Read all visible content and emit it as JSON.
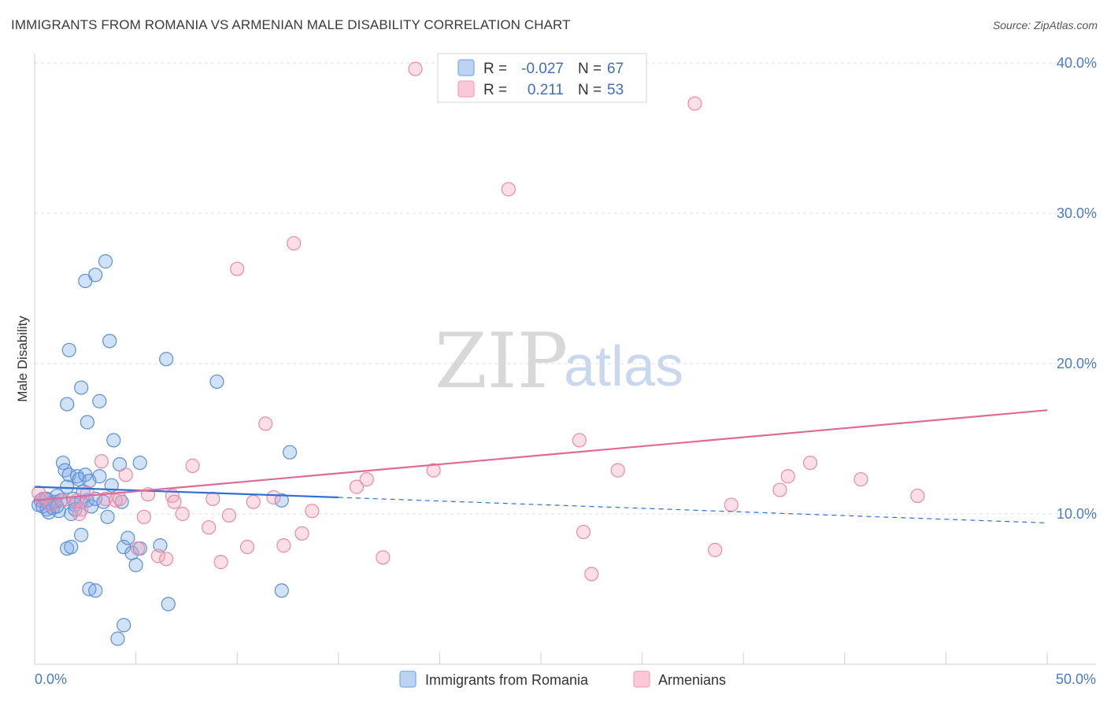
{
  "header": {
    "title": "IMMIGRANTS FROM ROMANIA VS ARMENIAN MALE DISABILITY CORRELATION CHART",
    "source": "Source: ZipAtlas.com"
  },
  "watermark": {
    "zip": "ZIP",
    "atlas": "atlas"
  },
  "colors": {
    "blue": "#7aaae6",
    "blue_line": "#2e6fd0",
    "pink": "#f2a2bb",
    "pink_line": "#e06a96",
    "axis_text": "#4a7cc4"
  },
  "chart_data": {
    "type": "scatter",
    "title": "IMMIGRANTS FROM ROMANIA VS ARMENIAN MALE DISABILITY CORRELATION CHART",
    "xlabel": "",
    "ylabel": "Male Disability",
    "xlim": [
      0,
      50
    ],
    "ylim": [
      0,
      40
    ],
    "x_tick_labels": [
      "0.0%",
      "50.0%"
    ],
    "y_ticks": [
      10,
      20,
      30,
      40
    ],
    "y_tick_labels": [
      "10.0%",
      "20.0%",
      "30.0%",
      "40.0%"
    ],
    "grid": "horizontal dashed",
    "legend_stats": [
      {
        "r_label": "R =",
        "r_value": "-0.027",
        "n_label": "N =",
        "n_value": "67"
      },
      {
        "r_label": "R =",
        "r_value": "0.211",
        "n_label": "N =",
        "n_value": "53"
      }
    ],
    "series": [
      {
        "name": "Immigrants from Romania",
        "color": "#7aaae6",
        "trend": {
          "x": [
            0,
            15,
            50
          ],
          "y": [
            11.8,
            11.1,
            9.4
          ],
          "solid_until": 15
        },
        "points": [
          [
            0.2,
            10.6
          ],
          [
            0.3,
            10.9
          ],
          [
            0.4,
            10.5
          ],
          [
            0.5,
            11.0
          ],
          [
            0.6,
            10.3
          ],
          [
            0.7,
            10.1
          ],
          [
            0.8,
            10.7
          ],
          [
            0.9,
            10.4
          ],
          [
            1.0,
            10.8
          ],
          [
            1.1,
            11.2
          ],
          [
            1.2,
            10.2
          ],
          [
            1.3,
            10.9
          ],
          [
            1.4,
            13.4
          ],
          [
            1.5,
            12.9
          ],
          [
            1.6,
            11.8
          ],
          [
            1.7,
            12.6
          ],
          [
            1.8,
            10.0
          ],
          [
            1.9,
            11.0
          ],
          [
            2.0,
            10.6
          ],
          [
            2.1,
            12.5
          ],
          [
            2.2,
            12.3
          ],
          [
            2.3,
            10.8
          ],
          [
            2.4,
            11.5
          ],
          [
            2.5,
            12.6
          ],
          [
            2.6,
            10.9
          ],
          [
            2.7,
            12.2
          ],
          [
            2.8,
            10.5
          ],
          [
            3.0,
            11.0
          ],
          [
            3.2,
            12.5
          ],
          [
            3.4,
            10.8
          ],
          [
            3.6,
            9.8
          ],
          [
            3.8,
            11.9
          ],
          [
            1.6,
            7.7
          ],
          [
            1.8,
            7.8
          ],
          [
            2.3,
            8.6
          ],
          [
            4.4,
            7.8
          ],
          [
            4.6,
            8.4
          ],
          [
            4.8,
            7.4
          ],
          [
            5.0,
            6.6
          ],
          [
            5.2,
            7.7
          ],
          [
            6.2,
            7.9
          ],
          [
            6.6,
            4.0
          ],
          [
            2.7,
            5.0
          ],
          [
            3.0,
            4.9
          ],
          [
            4.4,
            2.6
          ],
          [
            4.1,
            1.7
          ],
          [
            12.2,
            4.9
          ],
          [
            1.7,
            20.9
          ],
          [
            1.6,
            17.3
          ],
          [
            2.3,
            18.4
          ],
          [
            3.2,
            17.5
          ],
          [
            2.6,
            16.1
          ],
          [
            3.9,
            14.9
          ],
          [
            4.2,
            13.3
          ],
          [
            5.2,
            13.4
          ],
          [
            6.5,
            20.3
          ],
          [
            9.0,
            18.8
          ],
          [
            12.6,
            14.1
          ],
          [
            12.2,
            10.9
          ],
          [
            2.5,
            25.5
          ],
          [
            3.0,
            25.9
          ],
          [
            3.5,
            26.8
          ],
          [
            3.7,
            21.5
          ],
          [
            4.3,
            10.8
          ],
          [
            1.1,
            10.5
          ],
          [
            0.6,
            11.0
          ],
          [
            2.0,
            10.3
          ]
        ]
      },
      {
        "name": "Armenians",
        "color": "#f2a2bb",
        "trend": {
          "x": [
            0,
            50
          ],
          "y": [
            10.9,
            16.9
          ]
        },
        "points": [
          [
            0.2,
            11.4
          ],
          [
            0.8,
            10.6
          ],
          [
            1.4,
            10.9
          ],
          [
            2.1,
            10.9
          ],
          [
            2.3,
            10.3
          ],
          [
            2.2,
            10.0
          ],
          [
            2.6,
            11.4
          ],
          [
            3.3,
            13.5
          ],
          [
            3.5,
            11.0
          ],
          [
            4.0,
            10.9
          ],
          [
            4.2,
            11.0
          ],
          [
            4.5,
            12.6
          ],
          [
            5.1,
            7.7
          ],
          [
            5.4,
            9.8
          ],
          [
            5.6,
            11.3
          ],
          [
            6.1,
            7.2
          ],
          [
            6.5,
            7.0
          ],
          [
            6.8,
            11.2
          ],
          [
            6.9,
            10.8
          ],
          [
            7.3,
            10.0
          ],
          [
            7.8,
            13.2
          ],
          [
            8.6,
            9.1
          ],
          [
            8.8,
            11.0
          ],
          [
            9.2,
            6.8
          ],
          [
            9.6,
            9.9
          ],
          [
            10.0,
            26.3
          ],
          [
            10.5,
            7.8
          ],
          [
            10.8,
            10.8
          ],
          [
            11.4,
            16.0
          ],
          [
            11.8,
            11.1
          ],
          [
            12.3,
            7.9
          ],
          [
            12.8,
            28.0
          ],
          [
            13.2,
            8.7
          ],
          [
            13.7,
            10.2
          ],
          [
            15.9,
            11.8
          ],
          [
            16.4,
            12.3
          ],
          [
            17.2,
            7.1
          ],
          [
            18.8,
            39.6
          ],
          [
            19.7,
            12.9
          ],
          [
            23.4,
            31.6
          ],
          [
            26.9,
            14.9
          ],
          [
            27.1,
            8.8
          ],
          [
            27.5,
            6.0
          ],
          [
            28.8,
            12.9
          ],
          [
            32.6,
            37.3
          ],
          [
            33.6,
            7.6
          ],
          [
            34.4,
            10.6
          ],
          [
            36.8,
            11.6
          ],
          [
            37.2,
            12.5
          ],
          [
            38.3,
            13.4
          ],
          [
            40.8,
            12.3
          ],
          [
            43.6,
            11.2
          ],
          [
            0.4,
            11.0
          ]
        ]
      }
    ]
  }
}
